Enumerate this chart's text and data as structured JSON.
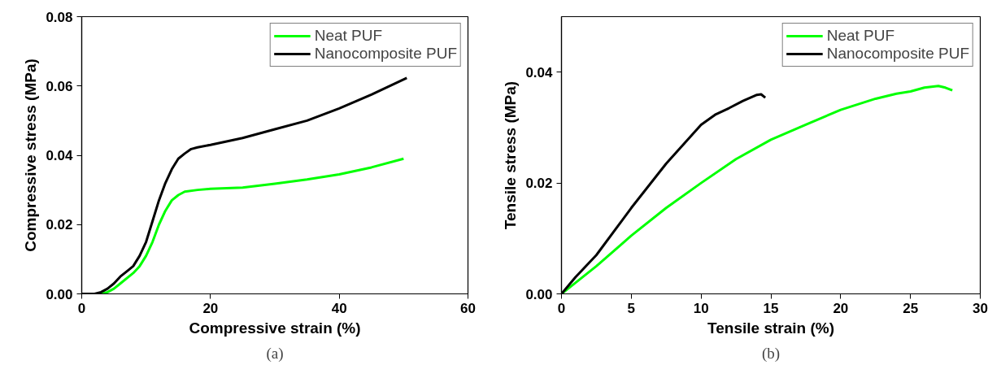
{
  "chart_data": [
    {
      "type": "line",
      "xlabel": "Compressive strain (%)",
      "ylabel": "Compressive stress (MPa)",
      "annotations": [
        "(a)"
      ],
      "xlim": [
        0,
        60
      ],
      "xticks": [
        0,
        20,
        40,
        60
      ],
      "ylim": [
        0,
        0.08
      ],
      "yticks": [
        {
          "value": 0,
          "label": "0.00"
        },
        {
          "value": 0.02,
          "label": "0.02"
        },
        {
          "value": 0.04,
          "label": "0.04"
        },
        {
          "value": 0.06,
          "label": "0.06"
        },
        {
          "value": 0.08,
          "label": "0.08"
        }
      ],
      "grid": false,
      "legend": "top right",
      "marker": "none",
      "line_style": "solid",
      "series": [
        {
          "name": "Neat PUF",
          "color": "#00ff00",
          "x": [
            0,
            2,
            3,
            4,
            5,
            6,
            8,
            9,
            10,
            11,
            12,
            13,
            14,
            15,
            16,
            18,
            20,
            25,
            30,
            35,
            40,
            45,
            50
          ],
          "values": [
            0,
            0,
            0,
            0.0005,
            0.0015,
            0.003,
            0.006,
            0.008,
            0.011,
            0.015,
            0.02,
            0.024,
            0.027,
            0.0285,
            0.0295,
            0.03,
            0.0303,
            0.0307,
            0.0318,
            0.033,
            0.0345,
            0.0365,
            0.039
          ]
        },
        {
          "name": "Nanocomposite PUF",
          "color": "#000000",
          "x": [
            0,
            2,
            3,
            4,
            5,
            6,
            7,
            8,
            9,
            10,
            11,
            12,
            13,
            14,
            15,
            16,
            17,
            18,
            20,
            25,
            30,
            35,
            40,
            45,
            50.5
          ],
          "values": [
            0,
            0,
            0.0005,
            0.0015,
            0.003,
            0.005,
            0.0065,
            0.008,
            0.011,
            0.015,
            0.021,
            0.027,
            0.032,
            0.036,
            0.039,
            0.0405,
            0.0418,
            0.0423,
            0.043,
            0.045,
            0.0475,
            0.05,
            0.0535,
            0.0575,
            0.0623
          ]
        }
      ]
    },
    {
      "type": "line",
      "xlabel": "Tensile strain (%)",
      "ylabel": "Tensile stress (MPa)",
      "annotations": [
        "(b)"
      ],
      "xlim": [
        0,
        30
      ],
      "xticks": [
        0,
        5,
        10,
        15,
        20,
        25,
        30
      ],
      "ylim": [
        0,
        0.05
      ],
      "yticks": [
        {
          "value": 0,
          "label": "0.00"
        },
        {
          "value": 0.02,
          "label": "0.02"
        },
        {
          "value": 0.04,
          "label": "0.04"
        }
      ],
      "grid": false,
      "legend": "top right",
      "marker": "none",
      "line_style": "solid",
      "series": [
        {
          "name": "Neat PUF",
          "color": "#00ff00",
          "x": [
            0,
            1,
            2.5,
            5,
            7.5,
            10,
            12.5,
            15,
            17.5,
            20,
            22.5,
            24,
            25,
            26,
            27,
            27.5,
            28
          ],
          "values": [
            0,
            0.002,
            0.005,
            0.0105,
            0.0155,
            0.02,
            0.0243,
            0.0278,
            0.0305,
            0.0332,
            0.0352,
            0.0361,
            0.0365,
            0.0372,
            0.0375,
            0.0372,
            0.0367
          ]
        },
        {
          "name": "Nanocomposite PUF",
          "color": "#000000",
          "x": [
            0,
            1,
            2.5,
            5,
            7.5,
            10,
            11,
            12,
            13,
            14,
            14.3,
            14.6
          ],
          "values": [
            0,
            0.003,
            0.007,
            0.0155,
            0.0235,
            0.0305,
            0.0323,
            0.0335,
            0.0348,
            0.0359,
            0.036,
            0.0354
          ]
        }
      ]
    }
  ]
}
